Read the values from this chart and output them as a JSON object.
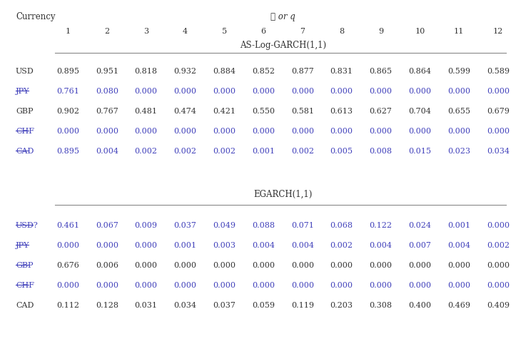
{
  "title_left": "Currency",
  "title_center": "ℓ or q",
  "col_headers": [
    "1",
    "2",
    "3",
    "4",
    "5",
    "6",
    "7",
    "8",
    "9",
    "10",
    "11",
    "12"
  ],
  "section1_label": "AS-Log-GARCH(1,1)",
  "section2_label": "EGARCH(1,1)",
  "rows_section1": [
    {
      "currency": "USD",
      "strikethrough": false,
      "blue": false,
      "val_blue": false,
      "values": [
        "0.895",
        "0.951",
        "0.818",
        "0.932",
        "0.884",
        "0.852",
        "0.877",
        "0.831",
        "0.865",
        "0.864",
        "0.599",
        "0.589"
      ]
    },
    {
      "currency": "JPY",
      "strikethrough": true,
      "blue": true,
      "val_blue": true,
      "values": [
        "0.761",
        "0.080",
        "0.000",
        "0.000",
        "0.000",
        "0.000",
        "0.000",
        "0.000",
        "0.000",
        "0.000",
        "0.000",
        "0.000"
      ]
    },
    {
      "currency": "GBP",
      "strikethrough": false,
      "blue": false,
      "val_blue": false,
      "values": [
        "0.902",
        "0.767",
        "0.481",
        "0.474",
        "0.421",
        "0.550",
        "0.581",
        "0.613",
        "0.627",
        "0.704",
        "0.655",
        "0.679"
      ]
    },
    {
      "currency": "CHF",
      "strikethrough": true,
      "blue": true,
      "val_blue": true,
      "values": [
        "0.000",
        "0.000",
        "0.000",
        "0.000",
        "0.000",
        "0.000",
        "0.000",
        "0.000",
        "0.000",
        "0.000",
        "0.000",
        "0.000"
      ]
    },
    {
      "currency": "CAD",
      "strikethrough": true,
      "blue": true,
      "val_blue": true,
      "values": [
        "0.895",
        "0.004",
        "0.002",
        "0.002",
        "0.002",
        "0.001",
        "0.002",
        "0.005",
        "0.008",
        "0.015",
        "0.023",
        "0.034"
      ]
    }
  ],
  "rows_section2": [
    {
      "currency": "USD?",
      "strikethrough": true,
      "blue": true,
      "val_blue": true,
      "values": [
        "0.461",
        "0.067",
        "0.009",
        "0.037",
        "0.049",
        "0.088",
        "0.071",
        "0.068",
        "0.122",
        "0.024",
        "0.001",
        "0.000"
      ]
    },
    {
      "currency": "JPY",
      "strikethrough": true,
      "blue": true,
      "val_blue": true,
      "values": [
        "0.000",
        "0.000",
        "0.000",
        "0.001",
        "0.003",
        "0.004",
        "0.004",
        "0.002",
        "0.004",
        "0.007",
        "0.004",
        "0.002"
      ]
    },
    {
      "currency": "GBP",
      "strikethrough": true,
      "blue": true,
      "val_blue": false,
      "values": [
        "0.676",
        "0.006",
        "0.000",
        "0.000",
        "0.000",
        "0.000",
        "0.000",
        "0.000",
        "0.000",
        "0.000",
        "0.000",
        "0.000"
      ]
    },
    {
      "currency": "CHF",
      "strikethrough": true,
      "blue": true,
      "val_blue": true,
      "values": [
        "0.000",
        "0.000",
        "0.000",
        "0.000",
        "0.000",
        "0.000",
        "0.000",
        "0.000",
        "0.000",
        "0.000",
        "0.000",
        "0.000"
      ]
    },
    {
      "currency": "CAD",
      "strikethrough": false,
      "blue": false,
      "val_blue": false,
      "values": [
        "0.112",
        "0.128",
        "0.031",
        "0.034",
        "0.037",
        "0.059",
        "0.119",
        "0.203",
        "0.308",
        "0.400",
        "0.469",
        "0.409"
      ]
    }
  ],
  "blue_color": "#4040bb",
  "black_color": "#333333",
  "line_color": "#888888",
  "bg_color": "#ffffff",
  "fs_title": 8.5,
  "fs_header": 8.0,
  "fs_data": 8.0,
  "fs_section": 8.5
}
